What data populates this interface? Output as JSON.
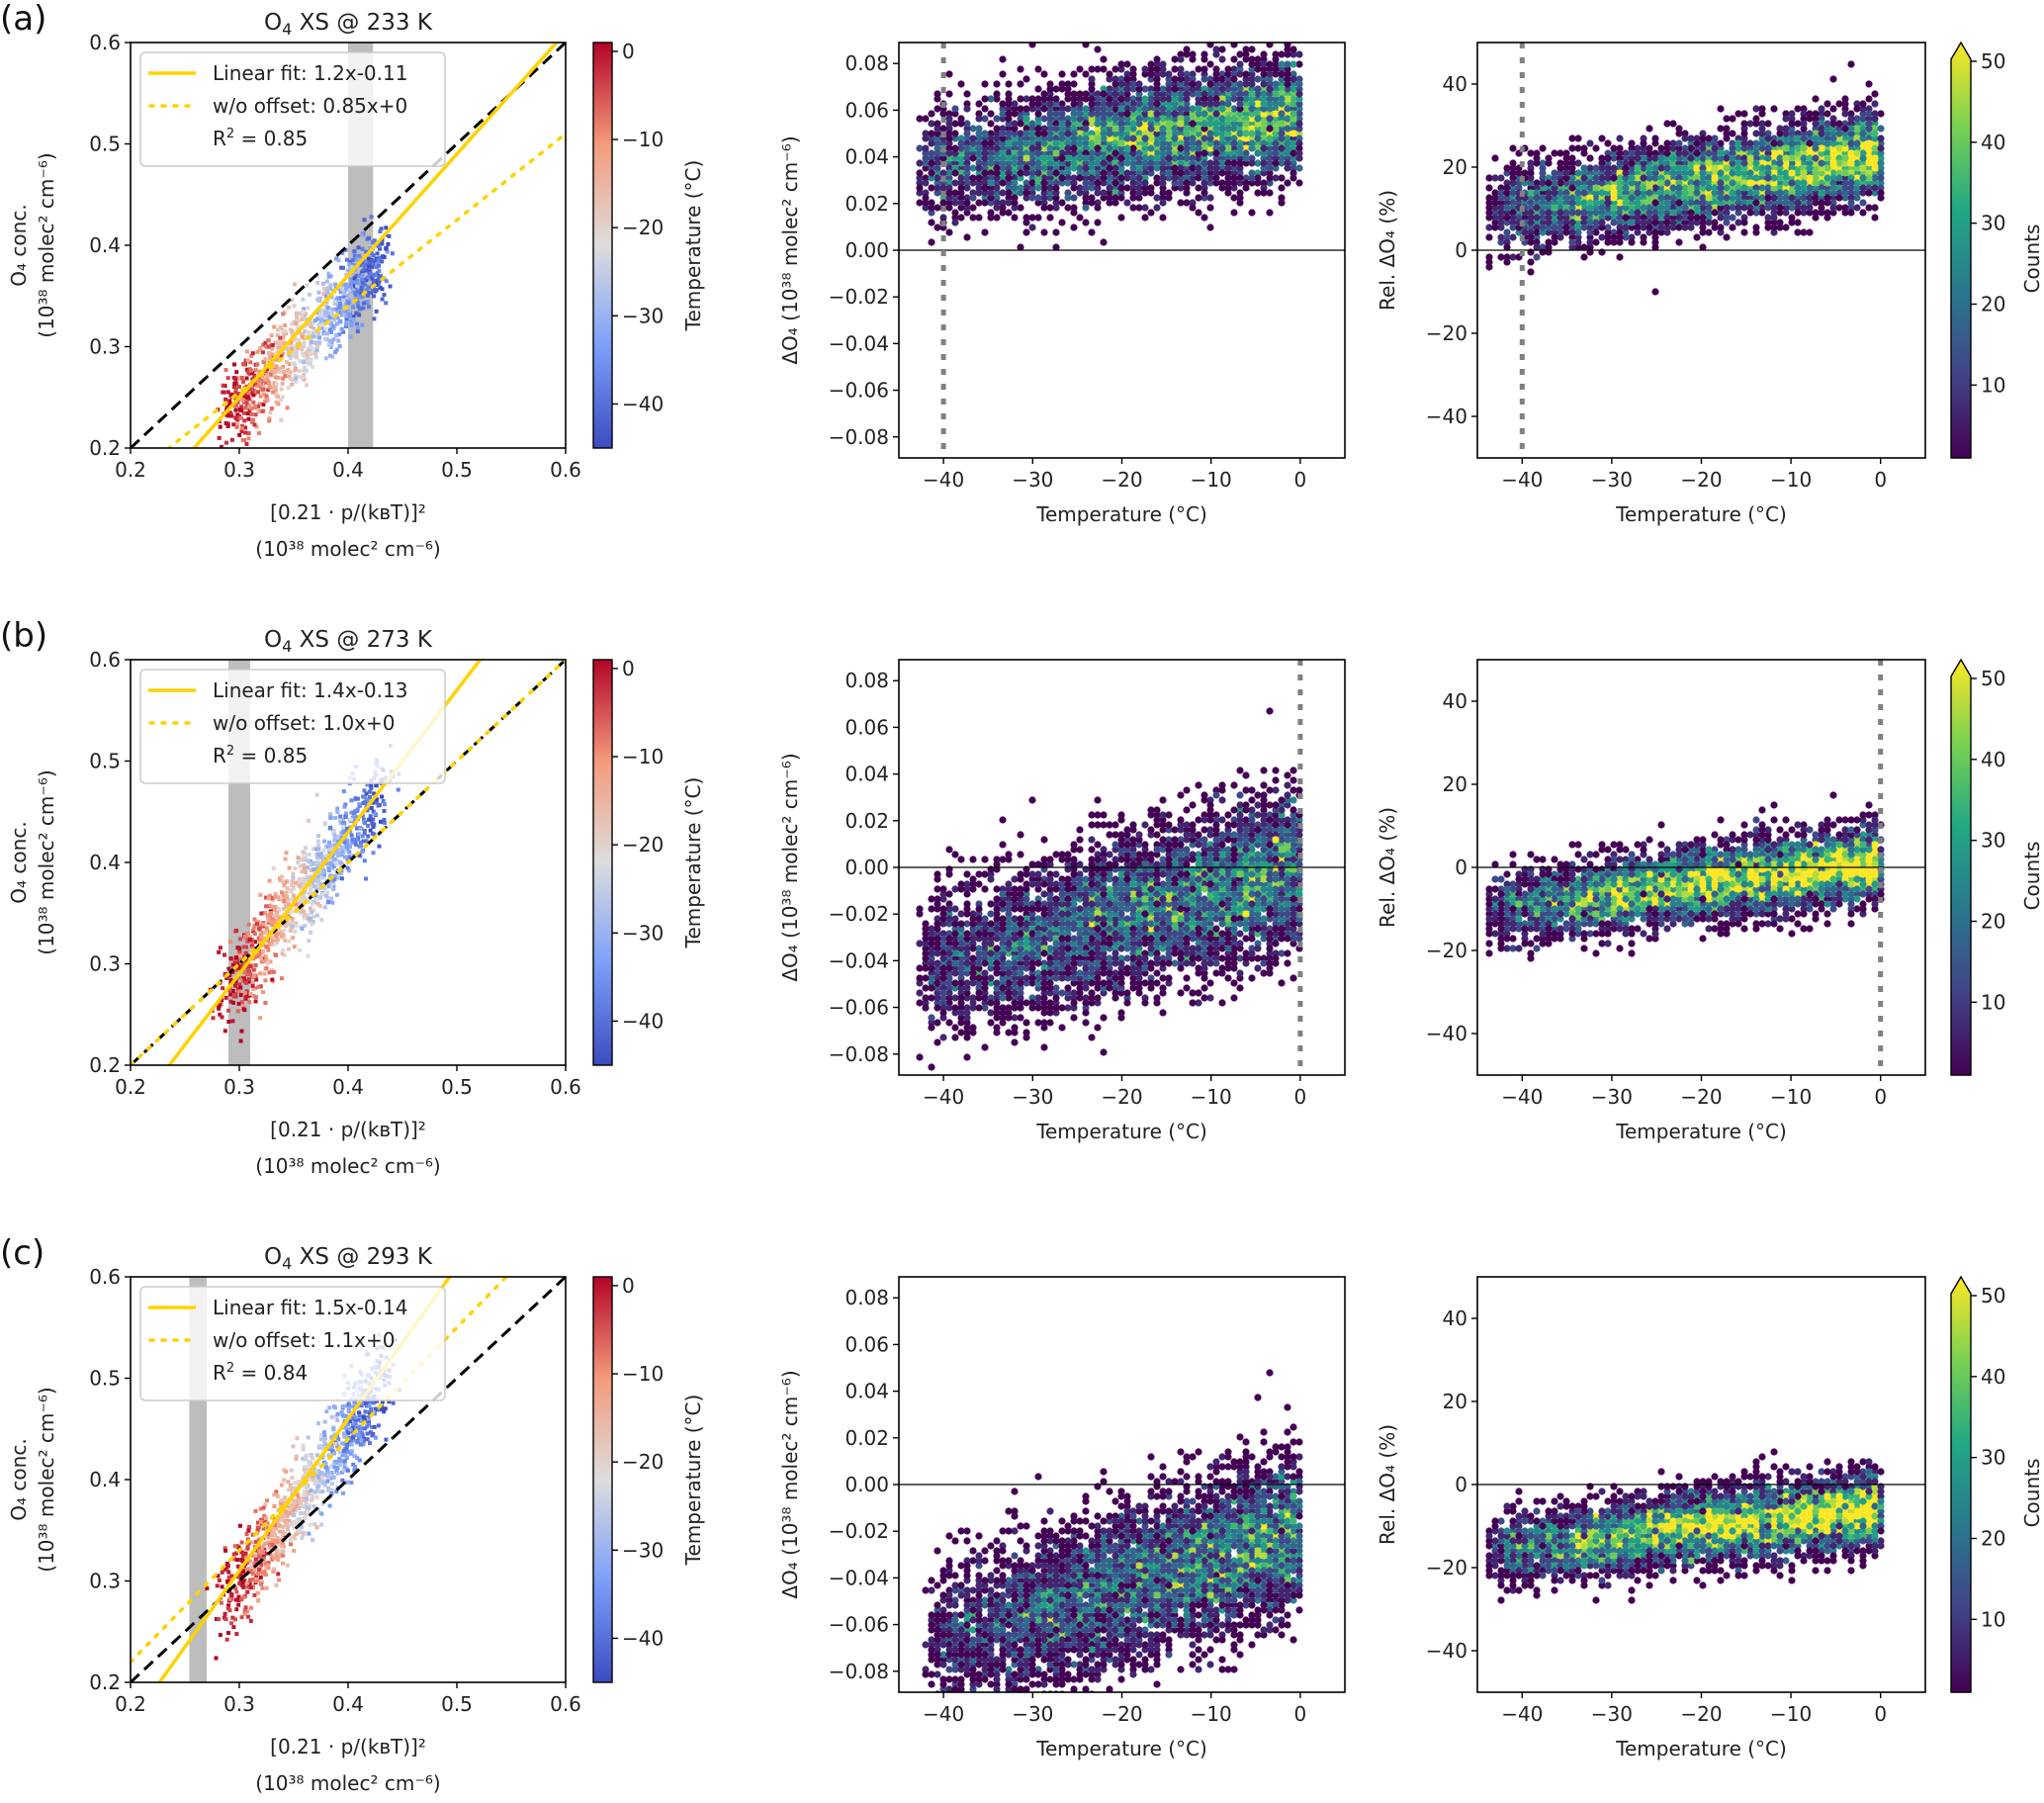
{
  "chart_data": {
    "type": "scatter",
    "note": "Three rows of panels (a),(b),(c). Each row: scatter colored by temperature, hexbin of absolute difference vs temperature, hexbin of relative difference vs temperature. Density-cloud envelopes are approximate visual summaries of the hexbin distributions; they are not measured values and only roughly describe each cloud's center line, spread, and extent.",
    "rows": [
      {
        "label": "(a)",
        "scatter": {
          "title_main": "O",
          "title_sub": "4",
          "title_rest": " XS @ 233 K",
          "xlim": [
            0.2,
            0.6
          ],
          "ylim": [
            0.2,
            0.6
          ],
          "xticks": [
            "0.2",
            "0.3",
            "0.4",
            "0.5",
            "0.6"
          ],
          "yticks": [
            "0.2",
            "0.3",
            "0.4",
            "0.5",
            "0.6"
          ],
          "fit": {
            "label": "Linear fit:",
            "eq": "1.2x-0.11",
            "slope": 1.2,
            "intercept": -0.11
          },
          "nooffset": {
            "label": "w/o offset:",
            "eq": "0.85x+0",
            "slope": 0.85
          },
          "r2": "0.85",
          "band": [
            0.4,
            0.423
          ],
          "cloud": {
            "x0": 0.29,
            "x1": 0.43,
            "slope": 1.05,
            "intercept": -0.07,
            "spread": 0.025
          }
        },
        "abs": {
          "vline": -40,
          "cloud_approx": {
            "t0": -43,
            "t1": 0,
            "center_at_t0": 0.035,
            "center_at_t1": 0.058,
            "spread": 0.017,
            "peak_t": -6
          }
        },
        "rel": {
          "vline": -40,
          "cloud_approx": {
            "t0": -44,
            "t1": 0,
            "center_at_t0": 9,
            "center_at_t1": 23,
            "spread": 7,
            "peak_t": -8
          }
        }
      },
      {
        "label": "(b)",
        "scatter": {
          "title_main": "O",
          "title_sub": "4",
          "title_rest": " XS @ 273 K",
          "xlim": [
            0.2,
            0.6
          ],
          "ylim": [
            0.2,
            0.6
          ],
          "xticks": [
            "0.2",
            "0.3",
            "0.4",
            "0.5",
            "0.6"
          ],
          "yticks": [
            "0.2",
            "0.3",
            "0.4",
            "0.5",
            "0.6"
          ],
          "fit": {
            "label": "Linear fit:",
            "eq": "1.4x-0.13",
            "slope": 1.4,
            "intercept": -0.13
          },
          "nooffset": {
            "label": "w/o offset:",
            "eq": "1.0x+0",
            "slope": 1.0
          },
          "r2": "0.85",
          "band": [
            0.29,
            0.31
          ],
          "cloud": {
            "x0": 0.29,
            "x1": 0.43,
            "slope": 1.35,
            "intercept": -0.115,
            "spread": 0.028
          }
        },
        "abs": {
          "vline": 0,
          "cloud_approx": {
            "t0": -43,
            "t1": 0,
            "center_at_t0": -0.045,
            "center_at_t1": 0.0,
            "spread": 0.022,
            "peak_t": -6
          }
        },
        "rel": {
          "vline": 0,
          "cloud_approx": {
            "t0": -44,
            "t1": 0,
            "center_at_t0": -10,
            "center_at_t1": 1,
            "spread": 6,
            "peak_t": -5
          }
        }
      },
      {
        "label": "(c)",
        "scatter": {
          "title_main": "O",
          "title_sub": "4",
          "title_rest": " XS @ 293 K",
          "xlim": [
            0.2,
            0.6
          ],
          "ylim": [
            0.2,
            0.6
          ],
          "xticks": [
            "0.2",
            "0.3",
            "0.4",
            "0.5",
            "0.6"
          ],
          "yticks": [
            "0.2",
            "0.3",
            "0.4",
            "0.5",
            "0.6"
          ],
          "fit": {
            "label": "Linear fit:",
            "eq": "1.5x-0.14",
            "slope": 1.5,
            "intercept": -0.14
          },
          "nooffset": {
            "label": "w/o offset:",
            "eq": "1.1x+0",
            "slope": 1.1
          },
          "r2": "0.84",
          "band": [
            0.254,
            0.27
          ],
          "cloud": {
            "x0": 0.29,
            "x1": 0.43,
            "slope": 1.45,
            "intercept": -0.135,
            "spread": 0.028
          }
        },
        "abs": {
          "vline": null,
          "cloud_approx": {
            "t0": -42,
            "t1": 0,
            "center_at_t0": -0.07,
            "center_at_t1": -0.02,
            "spread": 0.022,
            "peak_t": -5
          }
        },
        "rel": {
          "vline": null,
          "cloud_approx": {
            "t0": -44,
            "t1": 0,
            "center_at_t0": -16,
            "center_at_t1": -6,
            "spread": 6,
            "peak_t": -5
          }
        }
      }
    ],
    "scatter_axes": {
      "ylabel_line1": "O₄ conc.",
      "ylabel_line2": "(10³⁸ molec² cm⁻⁶)",
      "xlabel_line1": "[0.21 · p/(kʙT)]²",
      "xlabel_line2": "(10³⁸ molec² cm⁻⁶)"
    },
    "temp_colorbar": {
      "label": "Temperature (°C)",
      "range": [
        -45,
        1
      ],
      "ticks": [
        "0",
        "−10",
        "−20",
        "−30",
        "−40"
      ],
      "tick_values": [
        0,
        -10,
        -20,
        -30,
        -40
      ],
      "colormap": "coolwarm"
    },
    "abs_axes": {
      "xlim": [
        -45,
        5
      ],
      "ylim": [
        -0.089,
        0.089
      ],
      "xticks": [
        "−40",
        "−30",
        "−20",
        "−10",
        "0"
      ],
      "xtick_values": [
        -40,
        -30,
        -20,
        -10,
        0
      ],
      "yticks": [
        "0.08",
        "0.06",
        "0.04",
        "0.02",
        "0.00",
        "−0.02",
        "−0.04",
        "−0.06",
        "−0.08"
      ],
      "ytick_values": [
        0.08,
        0.06,
        0.04,
        0.02,
        0.0,
        -0.02,
        -0.04,
        -0.06,
        -0.08
      ],
      "xlabel": "Temperature (°C)",
      "ylabel": "ΔO₄ (10³⁸ molec² cm⁻⁶)"
    },
    "rel_axes": {
      "xlim": [
        -45,
        5
      ],
      "ylim": [
        -50,
        50
      ],
      "xticks": [
        "−40",
        "−30",
        "−20",
        "−10",
        "0"
      ],
      "xtick_values": [
        -40,
        -30,
        -20,
        -10,
        0
      ],
      "yticks": [
        "40",
        "20",
        "0",
        "−20",
        "−40"
      ],
      "ytick_values": [
        40,
        20,
        0,
        -20,
        -40
      ],
      "xlabel": "Temperature (°C)",
      "ylabel": "Rel. ΔO₄ (%)"
    },
    "counts_colorbar": {
      "label": "Counts",
      "range": [
        1,
        50
      ],
      "extend": "max",
      "ticks": [
        "50",
        "40",
        "30",
        "20",
        "10"
      ],
      "tick_values": [
        50,
        40,
        30,
        20,
        10
      ],
      "colormap": "viridis"
    },
    "colors": {
      "fit_line": "#ffd200",
      "one_to_one": "#000000",
      "band": "#bdbdbd",
      "vline": "#808080"
    }
  }
}
